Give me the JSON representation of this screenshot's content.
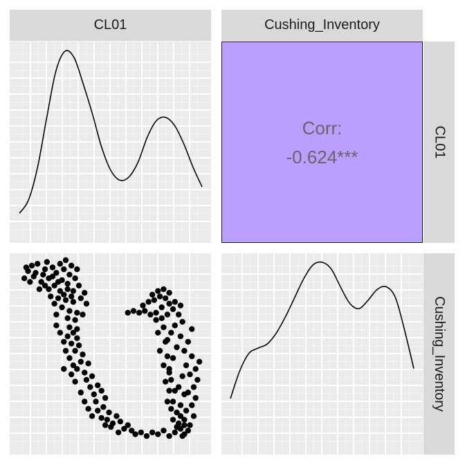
{
  "chart_data": {
    "type": "pairs-plot",
    "variables": [
      "CL01",
      "Cushing_Inventory"
    ],
    "correlation": {
      "label": "Corr:",
      "value": "-0.624***",
      "fill": "#bb9fff"
    },
    "panels": [
      {
        "type": "line",
        "name": "density-CL01",
        "x": [
          0.0,
          0.05,
          0.1,
          0.15,
          0.2,
          0.25,
          0.3,
          0.35,
          0.4,
          0.45,
          0.5,
          0.55,
          0.6,
          0.65,
          0.7,
          0.75,
          0.8,
          0.85,
          0.9,
          0.95,
          1.0
        ],
        "y": [
          0.02,
          0.1,
          0.3,
          0.6,
          0.88,
          1.0,
          0.96,
          0.8,
          0.62,
          0.42,
          0.28,
          0.22,
          0.24,
          0.33,
          0.48,
          0.58,
          0.6,
          0.55,
          0.44,
          0.3,
          0.18
        ]
      },
      {
        "type": "line",
        "name": "density-Cushing_Inventory",
        "x": [
          0.0,
          0.05,
          0.1,
          0.15,
          0.2,
          0.25,
          0.3,
          0.35,
          0.4,
          0.45,
          0.5,
          0.55,
          0.6,
          0.65,
          0.7,
          0.75,
          0.8,
          0.85,
          0.9,
          0.95,
          1.0
        ],
        "y": [
          0.0,
          0.2,
          0.33,
          0.37,
          0.4,
          0.48,
          0.6,
          0.74,
          0.88,
          0.98,
          1.0,
          0.95,
          0.82,
          0.7,
          0.66,
          0.72,
          0.8,
          0.82,
          0.74,
          0.5,
          0.22
        ]
      },
      {
        "type": "scatter",
        "name": "scatter-CL01-vs-Cushing_Inventory",
        "xlabel": "CL01",
        "ylabel": "Cushing_Inventory",
        "points": [
          [
            0.03,
            0.9
          ],
          [
            0.05,
            0.94
          ],
          [
            0.07,
            0.97
          ],
          [
            0.09,
            0.93
          ],
          [
            0.1,
            0.98
          ],
          [
            0.12,
            0.88
          ],
          [
            0.11,
            0.84
          ],
          [
            0.14,
            0.95
          ],
          [
            0.15,
            0.99
          ],
          [
            0.16,
            0.9
          ],
          [
            0.18,
            0.96
          ],
          [
            0.19,
            0.86
          ],
          [
            0.2,
            0.93
          ],
          [
            0.22,
            0.98
          ],
          [
            0.23,
            0.89
          ],
          [
            0.24,
            0.95
          ],
          [
            0.25,
            1.0
          ],
          [
            0.26,
            0.87
          ],
          [
            0.27,
            0.92
          ],
          [
            0.28,
            0.97
          ],
          [
            0.29,
            0.83
          ],
          [
            0.3,
            0.9
          ],
          [
            0.31,
            0.95
          ],
          [
            0.32,
            0.86
          ],
          [
            0.17,
            0.8
          ],
          [
            0.19,
            0.76
          ],
          [
            0.21,
            0.79
          ],
          [
            0.23,
            0.74
          ],
          [
            0.25,
            0.78
          ],
          [
            0.27,
            0.72
          ],
          [
            0.29,
            0.77
          ],
          [
            0.31,
            0.71
          ],
          [
            0.22,
            0.83
          ],
          [
            0.24,
            0.81
          ],
          [
            0.26,
            0.84
          ],
          [
            0.28,
            0.8
          ],
          [
            0.2,
            0.7
          ],
          [
            0.26,
            0.68
          ],
          [
            0.3,
            0.67
          ],
          [
            0.33,
            0.79
          ],
          [
            0.35,
            0.82
          ],
          [
            0.36,
            0.76
          ],
          [
            0.34,
            0.7
          ],
          [
            0.27,
            0.63
          ],
          [
            0.29,
            0.6
          ],
          [
            0.31,
            0.57
          ],
          [
            0.28,
            0.54
          ],
          [
            0.3,
            0.5
          ],
          [
            0.32,
            0.53
          ],
          [
            0.34,
            0.48
          ],
          [
            0.33,
            0.44
          ],
          [
            0.31,
            0.4
          ],
          [
            0.35,
            0.38
          ],
          [
            0.37,
            0.43
          ],
          [
            0.36,
            0.34
          ],
          [
            0.38,
            0.3
          ],
          [
            0.4,
            0.26
          ],
          [
            0.39,
            0.36
          ],
          [
            0.42,
            0.31
          ],
          [
            0.41,
            0.22
          ],
          [
            0.44,
            0.28
          ],
          [
            0.45,
            0.19
          ],
          [
            0.46,
            0.24
          ],
          [
            0.48,
            0.16
          ],
          [
            0.47,
            0.12
          ],
          [
            0.5,
            0.1
          ],
          [
            0.52,
            0.14
          ],
          [
            0.49,
            0.08
          ],
          [
            0.54,
            0.11
          ],
          [
            0.56,
            0.07
          ],
          [
            0.53,
            0.05
          ],
          [
            0.58,
            0.09
          ],
          [
            0.6,
            0.06
          ],
          [
            0.62,
            0.04
          ],
          [
            0.65,
            0.05
          ],
          [
            0.68,
            0.03
          ],
          [
            0.71,
            0.05
          ],
          [
            0.74,
            0.04
          ],
          [
            0.77,
            0.06
          ],
          [
            0.8,
            0.03
          ],
          [
            0.83,
            0.05
          ],
          [
            0.86,
            0.07
          ],
          [
            0.88,
            0.04
          ],
          [
            0.9,
            0.06
          ],
          [
            0.85,
            0.1
          ],
          [
            0.88,
            0.12
          ],
          [
            0.91,
            0.09
          ],
          [
            0.93,
            0.14
          ],
          [
            0.89,
            0.17
          ],
          [
            0.92,
            0.2
          ],
          [
            0.94,
            0.24
          ],
          [
            0.9,
            0.27
          ],
          [
            0.93,
            0.3
          ],
          [
            0.95,
            0.34
          ],
          [
            0.91,
            0.37
          ],
          [
            0.94,
            0.4
          ],
          [
            0.96,
            0.44
          ],
          [
            0.92,
            0.47
          ],
          [
            0.89,
            0.42
          ],
          [
            0.87,
            0.36
          ],
          [
            0.85,
            0.3
          ],
          [
            0.88,
            0.26
          ],
          [
            0.86,
            0.2
          ],
          [
            0.84,
            0.16
          ],
          [
            0.82,
            0.22
          ],
          [
            0.83,
            0.28
          ],
          [
            0.81,
            0.34
          ],
          [
            0.8,
            0.4
          ],
          [
            0.82,
            0.46
          ],
          [
            0.84,
            0.52
          ],
          [
            0.79,
            0.56
          ],
          [
            0.81,
            0.6
          ],
          [
            0.83,
            0.64
          ],
          [
            0.86,
            0.58
          ],
          [
            0.88,
            0.5
          ],
          [
            0.9,
            0.55
          ],
          [
            0.92,
            0.62
          ],
          [
            0.87,
            0.66
          ],
          [
            0.85,
            0.7
          ],
          [
            0.82,
            0.73
          ],
          [
            0.79,
            0.7
          ],
          [
            0.76,
            0.68
          ],
          [
            0.73,
            0.71
          ],
          [
            0.7,
            0.7
          ],
          [
            0.67,
            0.72
          ],
          [
            0.64,
            0.71
          ],
          [
            0.61,
            0.72
          ],
          [
            0.58,
            0.71
          ],
          [
            0.66,
            0.75
          ],
          [
            0.69,
            0.77
          ],
          [
            0.72,
            0.78
          ],
          [
            0.75,
            0.8
          ],
          [
            0.78,
            0.79
          ],
          [
            0.74,
            0.83
          ],
          [
            0.77,
            0.84
          ],
          [
            0.8,
            0.82
          ],
          [
            0.71,
            0.81
          ],
          [
            0.83,
            0.77
          ],
          [
            0.86,
            0.75
          ],
          [
            0.76,
            0.74
          ],
          [
            0.8,
            0.76
          ],
          [
            0.73,
            0.67
          ],
          [
            0.77,
            0.63
          ],
          [
            0.74,
            0.6
          ],
          [
            0.78,
            0.55
          ],
          [
            0.75,
            0.5
          ],
          [
            0.79,
            0.47
          ],
          [
            0.77,
            0.42
          ],
          [
            0.8,
            0.38
          ],
          [
            0.78,
            0.33
          ],
          [
            0.8,
            0.28
          ],
          [
            0.79,
            0.22
          ],
          [
            0.81,
            0.18
          ],
          [
            0.82,
            0.12
          ],
          [
            0.84,
            0.08
          ],
          [
            0.86,
            0.14
          ],
          [
            0.88,
            0.09
          ],
          [
            0.87,
            0.03
          ],
          [
            0.31,
            0.62
          ],
          [
            0.26,
            0.58
          ],
          [
            0.24,
            0.55
          ],
          [
            0.22,
            0.6
          ],
          [
            0.2,
            0.64
          ],
          [
            0.25,
            0.5
          ],
          [
            0.27,
            0.46
          ],
          [
            0.29,
            0.42
          ],
          [
            0.24,
            0.4
          ],
          [
            0.28,
            0.37
          ],
          [
            0.3,
            0.33
          ],
          [
            0.33,
            0.27
          ],
          [
            0.35,
            0.22
          ],
          [
            0.37,
            0.18
          ],
          [
            0.39,
            0.14
          ],
          [
            0.42,
            0.17
          ],
          [
            0.44,
            0.13
          ],
          [
            0.46,
            0.09
          ],
          [
            0.18,
            0.91
          ],
          [
            0.21,
            0.88
          ],
          [
            0.13,
            0.92
          ],
          [
            0.16,
            0.84
          ],
          [
            0.06,
            0.88
          ],
          [
            0.04,
            0.96
          ],
          [
            0.08,
            0.91
          ],
          [
            0.14,
            0.86
          ]
        ]
      }
    ]
  }
}
